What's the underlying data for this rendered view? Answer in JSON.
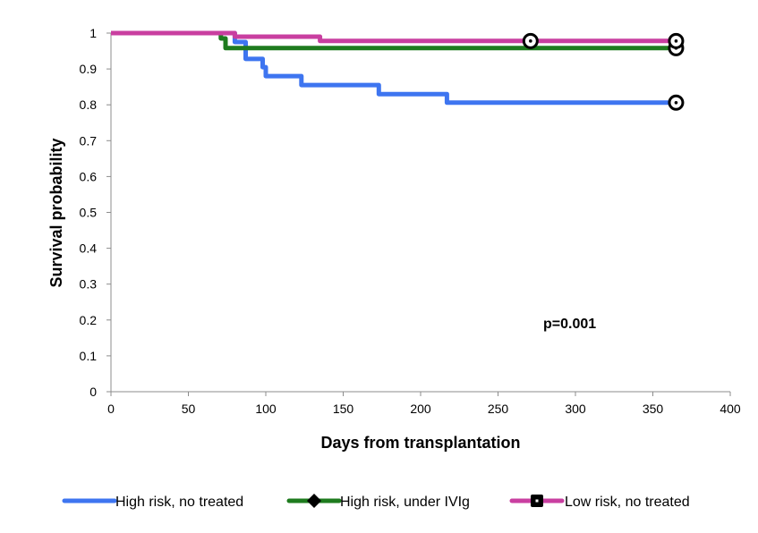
{
  "chart_data": {
    "type": "line",
    "step": true,
    "title": "",
    "xlabel": "Days from transplantation",
    "ylabel": "Survival probability",
    "xlim": [
      0,
      400
    ],
    "ylim": [
      0,
      1
    ],
    "x_ticks": [
      0,
      50,
      100,
      150,
      200,
      250,
      300,
      350,
      400
    ],
    "y_ticks": [
      0,
      0.1,
      0.2,
      0.3,
      0.4,
      0.5,
      0.6,
      0.7,
      0.8,
      0.9,
      1
    ],
    "grid": false,
    "legend_position": "bottom",
    "annotation": "p=0.001",
    "series": [
      {
        "name": "High risk, no treated",
        "color": "#3e75f0",
        "marker": "none",
        "points": [
          [
            0,
            1
          ],
          [
            80,
            1
          ],
          [
            80,
            0.975
          ],
          [
            87,
            0.975
          ],
          [
            87,
            0.928
          ],
          [
            98,
            0.928
          ],
          [
            98,
            0.905
          ],
          [
            100,
            0.905
          ],
          [
            100,
            0.88
          ],
          [
            123,
            0.88
          ],
          [
            123,
            0.855
          ],
          [
            173,
            0.855
          ],
          [
            173,
            0.83
          ],
          [
            217,
            0.83
          ],
          [
            217,
            0.806
          ],
          [
            365,
            0.806
          ]
        ],
        "censored": [
          [
            365,
            0.806
          ]
        ]
      },
      {
        "name": "High risk, under IVIg",
        "color": "#1e7b1e",
        "marker": "diamond-icon",
        "points": [
          [
            0,
            1
          ],
          [
            71,
            1
          ],
          [
            71,
            0.985
          ],
          [
            74,
            0.985
          ],
          [
            74,
            0.958
          ],
          [
            365,
            0.958
          ]
        ],
        "censored": [
          [
            365,
            0.958
          ]
        ]
      },
      {
        "name": "Low risk, no treated",
        "color": "#c93fa0",
        "marker": "square-icon",
        "points": [
          [
            0,
            1
          ],
          [
            80,
            1
          ],
          [
            80,
            0.99
          ],
          [
            135,
            0.99
          ],
          [
            135,
            0.978
          ],
          [
            365,
            0.978
          ]
        ],
        "censored": [
          [
            271,
            0.978
          ],
          [
            365,
            0.978
          ]
        ]
      }
    ]
  }
}
